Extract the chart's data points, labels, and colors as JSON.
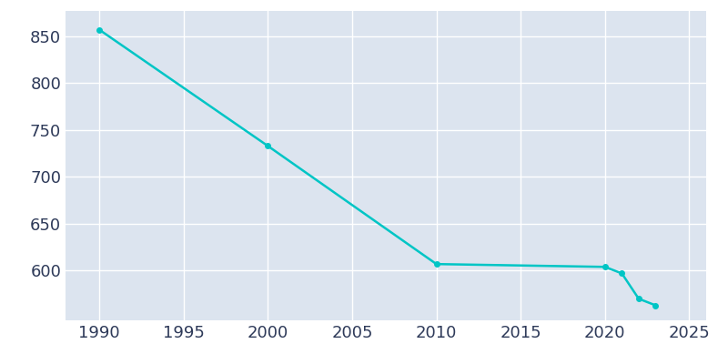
{
  "years": [
    1990,
    2000,
    2010,
    2020,
    2021,
    2022,
    2023
  ],
  "population": [
    857,
    733,
    607,
    604,
    597,
    570,
    563
  ],
  "line_color": "#00C5C5",
  "marker_color": "#00C5C5",
  "background_color": "#E3E8F0",
  "plot_bg_color": "#DCE4EF",
  "grid_color": "#FFFFFF",
  "tick_color": "#2E3A59",
  "xlim": [
    1988,
    2026
  ],
  "ylim": [
    547,
    877
  ],
  "xticks": [
    1990,
    1995,
    2000,
    2005,
    2010,
    2015,
    2020,
    2025
  ],
  "yticks": [
    600,
    650,
    700,
    750,
    800,
    850
  ],
  "marker_size": 4,
  "line_width": 1.8,
  "tick_labelsize": 13
}
